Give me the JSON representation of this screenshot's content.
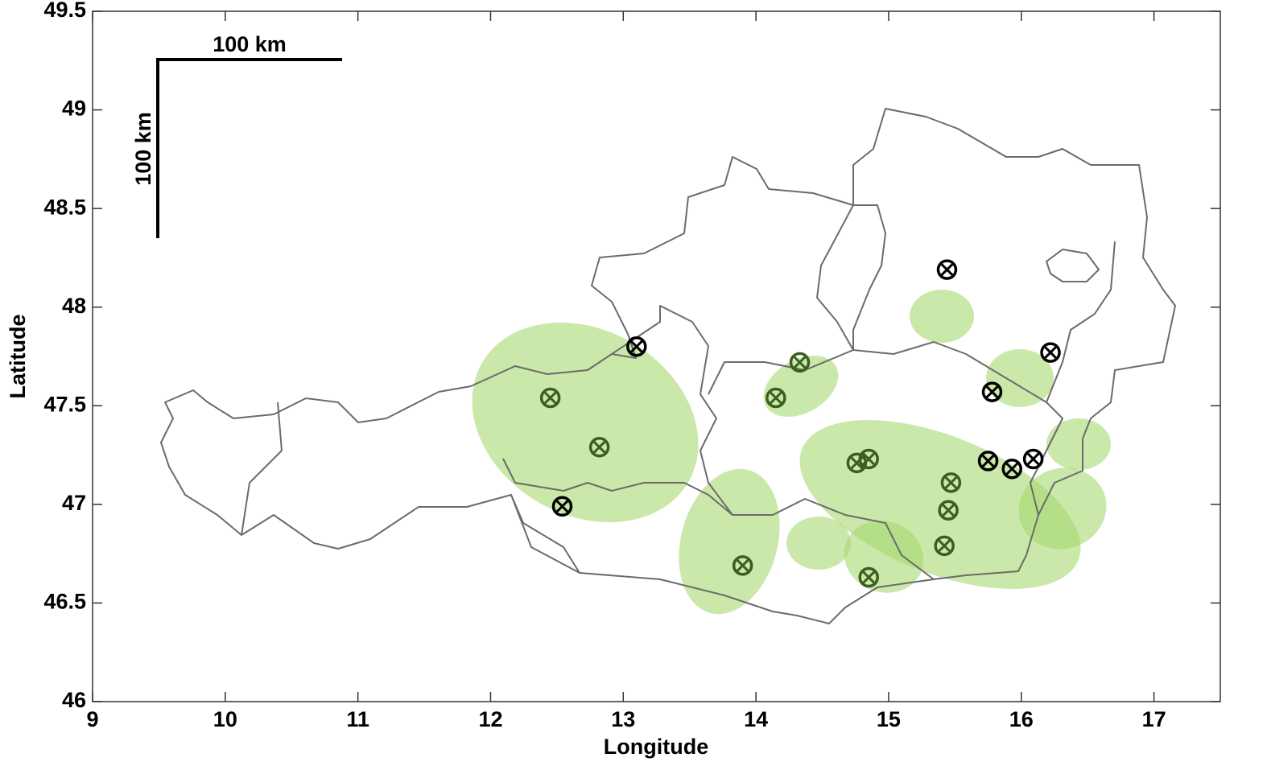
{
  "chart_data": {
    "type": "scatter",
    "xlabel": "Longitude",
    "ylabel": "Latitude",
    "xlim": [
      9,
      17.5
    ],
    "xticks": [
      9,
      10,
      11,
      12,
      13,
      14,
      15,
      16,
      17
    ],
    "ylim": [
      46,
      49.5
    ],
    "yticks": [
      46,
      46.5,
      47,
      47.5,
      48,
      48.5,
      49,
      49.5
    ],
    "scale_bar_labels": [
      "100 km",
      "100 km"
    ],
    "series": [
      {
        "color": "#000000",
        "x": [
          15.44,
          13.1,
          16.22,
          15.78,
          16.09,
          15.93,
          15.75,
          12.54
        ],
        "values": [
          48.19,
          47.8,
          47.77,
          47.57,
          47.23,
          47.18,
          47.22,
          46.99
        ]
      },
      {
        "color": "#3a5f1f",
        "x": [
          12.45,
          12.82,
          13.9,
          14.33,
          14.15,
          14.76,
          14.85,
          15.47,
          15.45,
          15.42,
          14.85
        ],
        "values": [
          47.54,
          47.29,
          46.69,
          47.72,
          47.54,
          47.21,
          47.23,
          47.11,
          46.97,
          46.79,
          46.63
        ]
      }
    ]
  }
}
